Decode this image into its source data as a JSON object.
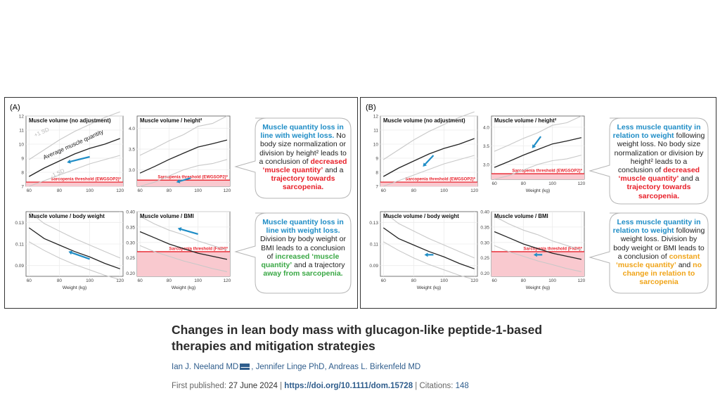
{
  "figure_A": {
    "label": "(A)",
    "callout1": {
      "parts": [
        {
          "t": "Muscle quantity loss in line with weight loss.",
          "c": "blue"
        },
        {
          "t": " No body size normalization or division by height² leads to a conclusion of ",
          "c": ""
        },
        {
          "t": "decreased ‘muscle quantity’",
          "c": "red"
        },
        {
          "t": " and a ",
          "c": ""
        },
        {
          "t": "trajectory towards sarcopenia.",
          "c": "red"
        }
      ]
    },
    "callout2": {
      "parts": [
        {
          "t": "Muscle quantity loss in line with weight loss.",
          "c": "blue"
        },
        {
          "t": " Division by body weight or BMI leads to a conclusion of ",
          "c": ""
        },
        {
          "t": "increased ‘muscle quantity’",
          "c": "green"
        },
        {
          "t": " and a trajectory ",
          "c": ""
        },
        {
          "t": "away from sarcopenia.",
          "c": "green"
        }
      ]
    }
  },
  "figure_B": {
    "label": "(B)",
    "callout1": {
      "parts": [
        {
          "t": "Less muscle quantity in relation to weight",
          "c": "blue"
        },
        {
          "t": " following weight loss. No body size normalization or division by height² leads to a conclusion of ",
          "c": ""
        },
        {
          "t": "decreased ‘muscle quantity’",
          "c": "red"
        },
        {
          "t": " and a ",
          "c": ""
        },
        {
          "t": "trajectory towards sarcopenia.",
          "c": "red"
        }
      ]
    },
    "callout2": {
      "parts": [
        {
          "t": "Less muscle quantity in relation to weight",
          "c": "blue"
        },
        {
          "t": " following weight loss. Division by body weight or BMI leads to a conclusion of ",
          "c": ""
        },
        {
          "t": "constant ‘muscle quantity’",
          "c": "orange"
        },
        {
          "t": " and ",
          "c": ""
        },
        {
          "t": "no change in relation to sarcopenia",
          "c": "orange"
        }
      ]
    }
  },
  "article": {
    "title": "Changes in lean body mass with glucagon-like peptide-1-based therapies and mitigation strategies",
    "author1": "Ian J. Neeland MD",
    "author_rest": ", Jennifer Linge PhD, Andreas L. Birkenfeld MD",
    "published_label": "First published:",
    "published_date": "27 June 2024",
    "sep": "|",
    "doi": "https://doi.org/10.1111/dom.15728",
    "citations_label": "Citations:",
    "citations": "148"
  },
  "colors": {
    "mean_line": "#222222",
    "sd_line": "#c8c8c8",
    "threshold": "#e8202a",
    "threshold_fill": "#f9c9cf",
    "arrow": "#1f8dc6"
  },
  "chart_data": [
    {
      "type": "line",
      "figure": "A",
      "title": "Muscle volume (no adjustment)",
      "xlabel": "",
      "ylabel": "",
      "xlim": [
        58,
        122
      ],
      "ylim": [
        7,
        12
      ],
      "xticks": [
        "60",
        "80",
        "100",
        "120"
      ],
      "yticks": [
        "7",
        "8",
        "9",
        "10",
        "11",
        "12"
      ],
      "grid": true,
      "series": [
        {
          "name": "Average muscle quantity",
          "x": [
            60,
            70,
            80,
            90,
            100,
            110,
            120
          ],
          "values": [
            7.7,
            8.3,
            8.8,
            9.3,
            9.7,
            10.0,
            10.4
          ]
        },
        {
          "name": "+1 SD",
          "x": [
            60,
            70,
            80,
            90,
            100,
            110,
            120
          ],
          "values": [
            8.9,
            9.6,
            10.3,
            10.9,
            11.4,
            11.9,
            12.3
          ]
        },
        {
          "name": "-1 SD",
          "x": [
            60,
            70,
            80,
            90,
            100,
            110,
            120
          ],
          "values": [
            7.0,
            7.4,
            7.8,
            8.2,
            8.6,
            8.9,
            9.2
          ]
        }
      ],
      "threshold": {
        "label": "Sarcopenia threshold (EWGSOP2)*",
        "value": 7.3
      },
      "annotations": [
        "+1 SD",
        "Average muscle quantity",
        "-1 SD"
      ],
      "arrow": {
        "from": [
          100,
          9.1
        ],
        "to": [
          85,
          8.7
        ]
      }
    },
    {
      "type": "line",
      "figure": "A",
      "title": "Muscle volume / height²",
      "xlabel": "",
      "ylabel": "",
      "xlim": [
        58,
        122
      ],
      "ylim": [
        2.6,
        4.3
      ],
      "xticks": [
        "60",
        "80",
        "100",
        "120"
      ],
      "yticks": [
        "3.0",
        "3.5",
        "4.0"
      ],
      "grid": true,
      "series": [
        {
          "name": "Average",
          "x": [
            60,
            70,
            80,
            90,
            100,
            110,
            120
          ],
          "values": [
            2.92,
            3.08,
            3.25,
            3.4,
            3.55,
            3.63,
            3.72
          ]
        },
        {
          "name": "+1 SD",
          "x": [
            60,
            70,
            80,
            90,
            100,
            110,
            120
          ],
          "values": [
            3.35,
            3.52,
            3.7,
            3.85,
            4.05,
            4.12,
            4.3
          ]
        },
        {
          "name": "-1 SD",
          "x": [
            60,
            70,
            80,
            90,
            100,
            110,
            120
          ],
          "values": [
            2.6,
            2.7,
            2.85,
            3.0,
            3.1,
            3.15,
            3.25
          ]
        }
      ],
      "threshold": {
        "label": "Sarcopenia threshold (EWGSOP2)*",
        "value": 2.75
      },
      "arrow": {
        "from": [
          95,
          2.8
        ],
        "to": [
          85,
          2.7
        ]
      }
    },
    {
      "type": "line",
      "figure": "A",
      "title": "Muscle volume / body weight",
      "xlabel": "Weight (kg)",
      "ylabel": "",
      "xlim": [
        58,
        122
      ],
      "ylim": [
        0.08,
        0.14
      ],
      "xticks": [
        "60",
        "80",
        "100",
        "120"
      ],
      "yticks": [
        "0.09",
        "0.11",
        "0.13"
      ],
      "grid": true,
      "series": [
        {
          "name": "Average",
          "x": [
            60,
            70,
            80,
            90,
            100,
            110,
            120
          ],
          "values": [
            0.125,
            0.115,
            0.109,
            0.103,
            0.098,
            0.092,
            0.087
          ]
        },
        {
          "name": "+1 SD",
          "x": [
            60,
            70,
            80,
            90,
            100,
            110,
            120
          ],
          "values": [
            0.14,
            0.129,
            0.122,
            0.115,
            0.109,
            0.103,
            0.097
          ]
        },
        {
          "name": "-1 SD",
          "x": [
            60,
            70,
            80,
            90,
            100,
            110,
            120
          ],
          "values": [
            0.112,
            0.104,
            0.097,
            0.091,
            0.086,
            0.081,
            0.077
          ]
        }
      ],
      "arrow": {
        "from": [
          100,
          0.096
        ],
        "to": [
          86,
          0.103
        ]
      }
    },
    {
      "type": "line",
      "figure": "A",
      "title": "Muscle volume / BMI",
      "xlabel": "Weight (kg)",
      "ylabel": "",
      "xlim": [
        58,
        122
      ],
      "ylim": [
        0.19,
        0.4
      ],
      "xticks": [
        "60",
        "80",
        "100",
        "120"
      ],
      "yticks": [
        "0.20",
        "0.25",
        "0.30",
        "0.35",
        "0.40"
      ],
      "grid": true,
      "series": [
        {
          "name": "Average",
          "x": [
            60,
            70,
            80,
            90,
            100,
            110,
            120
          ],
          "values": [
            0.335,
            0.315,
            0.295,
            0.28,
            0.265,
            0.255,
            0.245
          ]
        },
        {
          "name": "+1 SD",
          "x": [
            60,
            70,
            80,
            90,
            100,
            110,
            120
          ],
          "values": [
            0.385,
            0.36,
            0.34,
            0.325,
            0.305,
            0.29,
            0.275
          ]
        },
        {
          "name": "-1 SD",
          "x": [
            60,
            70,
            80,
            90,
            100,
            110,
            120
          ],
          "values": [
            0.29,
            0.27,
            0.255,
            0.24,
            0.228,
            0.215,
            0.205
          ]
        }
      ],
      "threshold": {
        "label": "Sarcopenia threshold (FNIH)*",
        "value": 0.27
      },
      "arrow": {
        "from": [
          100,
          0.327
        ],
        "to": [
          86,
          0.346
        ]
      }
    },
    {
      "type": "line",
      "figure": "B",
      "title": "Muscle volume (no adjustment)",
      "xlabel": "",
      "ylabel": "",
      "xlim": [
        58,
        122
      ],
      "ylim": [
        7,
        12
      ],
      "xticks": [
        "60",
        "80",
        "100",
        "120"
      ],
      "yticks": [
        "7",
        "8",
        "9",
        "10",
        "11",
        "12"
      ],
      "grid": true,
      "series": [
        {
          "name": "Average",
          "x": [
            60,
            70,
            80,
            90,
            100,
            110,
            120
          ],
          "values": [
            7.7,
            8.3,
            8.8,
            9.3,
            9.7,
            10.0,
            10.4
          ]
        },
        {
          "name": "+1 SD",
          "x": [
            60,
            70,
            80,
            90,
            100,
            110,
            120
          ],
          "values": [
            8.9,
            9.6,
            10.3,
            10.9,
            11.4,
            11.9,
            12.3
          ]
        },
        {
          "name": "-1 SD",
          "x": [
            60,
            70,
            80,
            90,
            100,
            110,
            120
          ],
          "values": [
            7.0,
            7.4,
            7.8,
            8.2,
            8.6,
            8.9,
            9.2
          ]
        }
      ],
      "threshold": {
        "label": "Sarcopenia threshold (EWGSOP2)*",
        "value": 7.3
      },
      "arrow": {
        "from": [
          93,
          9.2
        ],
        "to": [
          86,
          8.4
        ]
      }
    },
    {
      "type": "line",
      "figure": "B",
      "title": "Muscle volume / height²",
      "xlabel": "Weight (kg)",
      "ylabel": "",
      "xlim": [
        58,
        122
      ],
      "ylim": [
        2.6,
        4.3
      ],
      "xticks": [
        "60",
        "80",
        "100",
        "120"
      ],
      "yticks": [
        "3.0",
        "3.5",
        "4.0"
      ],
      "grid": true,
      "series": [
        {
          "name": "Average",
          "x": [
            60,
            70,
            80,
            90,
            100,
            110,
            120
          ],
          "values": [
            2.92,
            3.08,
            3.25,
            3.4,
            3.55,
            3.63,
            3.72
          ]
        },
        {
          "name": "+1 SD",
          "x": [
            60,
            70,
            80,
            90,
            100,
            110,
            120
          ],
          "values": [
            3.35,
            3.52,
            3.7,
            3.85,
            4.05,
            4.12,
            4.3
          ]
        },
        {
          "name": "-1 SD",
          "x": [
            60,
            70,
            80,
            90,
            100,
            110,
            120
          ],
          "values": [
            2.6,
            2.7,
            2.85,
            3.0,
            3.1,
            3.15,
            3.25
          ]
        }
      ],
      "threshold": {
        "label": "Sarcopenia threshold (EWGSOP2)*",
        "value": 2.75
      },
      "arrow": {
        "from": [
          92,
          3.75
        ],
        "to": [
          86,
          3.43
        ]
      }
    },
    {
      "type": "line",
      "figure": "B",
      "title": "Muscle volume / body weight",
      "xlabel": "Weight (kg)",
      "ylabel": "",
      "xlim": [
        58,
        122
      ],
      "ylim": [
        0.08,
        0.14
      ],
      "xticks": [
        "60",
        "80",
        "100",
        "120"
      ],
      "yticks": [
        "0.09",
        "0.11",
        "0.13"
      ],
      "grid": true,
      "series": [
        {
          "name": "Average",
          "x": [
            60,
            70,
            80,
            90,
            100,
            110,
            120
          ],
          "values": [
            0.125,
            0.115,
            0.109,
            0.103,
            0.098,
            0.092,
            0.087
          ]
        },
        {
          "name": "+1 SD",
          "x": [
            60,
            70,
            80,
            90,
            100,
            110,
            120
          ],
          "values": [
            0.14,
            0.129,
            0.122,
            0.115,
            0.109,
            0.103,
            0.097
          ]
        },
        {
          "name": "-1 SD",
          "x": [
            60,
            70,
            80,
            90,
            100,
            110,
            120
          ],
          "values": [
            0.112,
            0.104,
            0.097,
            0.091,
            0.086,
            0.081,
            0.077
          ]
        }
      ],
      "arrow": {
        "from": [
          93,
          0.1
        ],
        "to": [
          87,
          0.1
        ]
      }
    },
    {
      "type": "line",
      "figure": "B",
      "title": "Muscle volume / BMI",
      "xlabel": "Weight (kg)",
      "ylabel": "",
      "xlim": [
        58,
        122
      ],
      "ylim": [
        0.19,
        0.4
      ],
      "xticks": [
        "60",
        "80",
        "100",
        "120"
      ],
      "yticks": [
        "0.20",
        "0.25",
        "0.30",
        "0.35",
        "0.40"
      ],
      "grid": true,
      "series": [
        {
          "name": "Average",
          "x": [
            60,
            70,
            80,
            90,
            100,
            110,
            120
          ],
          "values": [
            0.335,
            0.315,
            0.295,
            0.28,
            0.265,
            0.255,
            0.245
          ]
        },
        {
          "name": "+1 SD",
          "x": [
            60,
            70,
            80,
            90,
            100,
            110,
            120
          ],
          "values": [
            0.385,
            0.36,
            0.34,
            0.325,
            0.305,
            0.29,
            0.275
          ]
        },
        {
          "name": "-1 SD",
          "x": [
            60,
            70,
            80,
            90,
            100,
            110,
            120
          ],
          "values": [
            0.29,
            0.27,
            0.255,
            0.24,
            0.228,
            0.215,
            0.205
          ]
        }
      ],
      "threshold": {
        "label": "Sarcopenia threshold (FNIH)*",
        "value": 0.27
      },
      "arrow": {
        "from": [
          93,
          0.26
        ],
        "to": [
          87,
          0.26
        ]
      }
    }
  ]
}
